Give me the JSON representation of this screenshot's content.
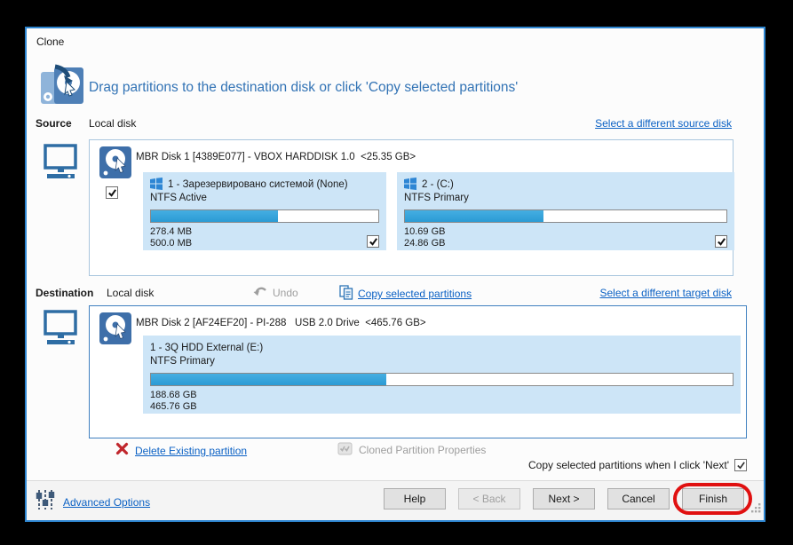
{
  "window": {
    "title": "Clone",
    "heading": "Drag partitions to the destination disk or click 'Copy selected partitions'"
  },
  "source": {
    "label": "Source",
    "type_label": "Local disk",
    "select_link": "Select a different source disk",
    "disk": {
      "title": "MBR Disk 1 [4389E077] - VBOX HARDDISK 1.0  <25.35 GB>",
      "checked": true,
      "partitions": [
        {
          "name": "1 - Зарезервировано системой (None)",
          "fs": "NTFS Active",
          "used": "278.4 MB",
          "size": "500.0 MB",
          "fill_pct": 55.7,
          "checked": true
        },
        {
          "name": "2 -  (C:)",
          "fs": "NTFS Primary",
          "used": "10.69 GB",
          "size": "24.86 GB",
          "fill_pct": 43.0,
          "checked": true
        }
      ]
    }
  },
  "destination": {
    "label": "Destination",
    "type_label": "Local disk",
    "undo_label": "Undo",
    "copy_link": "Copy selected partitions",
    "select_link": "Select a different target disk",
    "disk": {
      "title": "MBR Disk 2 [AF24EF20] - PI-288   USB 2.0 Drive  <465.76 GB>",
      "partitions": [
        {
          "name": "1 - 3Q HDD External (E:)",
          "fs": "NTFS Primary",
          "used": "188.68 GB",
          "size": "465.76 GB",
          "fill_pct": 40.5
        }
      ]
    },
    "delete_link": "Delete Existing partition",
    "cloned_props_label": "Cloned Partition Properties"
  },
  "footer": {
    "copy_when_next_label": "Copy selected partitions when I click 'Next'",
    "copy_when_next_checked": true,
    "advanced_options_label": "Advanced Options",
    "buttons": {
      "help": "Help",
      "back": "< Back",
      "next": "Next >",
      "cancel": "Cancel",
      "finish": "Finish"
    }
  },
  "colors": {
    "window_border": "#2E86D1",
    "link": "#0B61C4",
    "heading": "#3273B5",
    "partition_bg": "#CDE5F7",
    "bar_fill": "#34A3DC",
    "annotation_red": "#E01010",
    "disabled_gray": "#9E9E9E"
  }
}
